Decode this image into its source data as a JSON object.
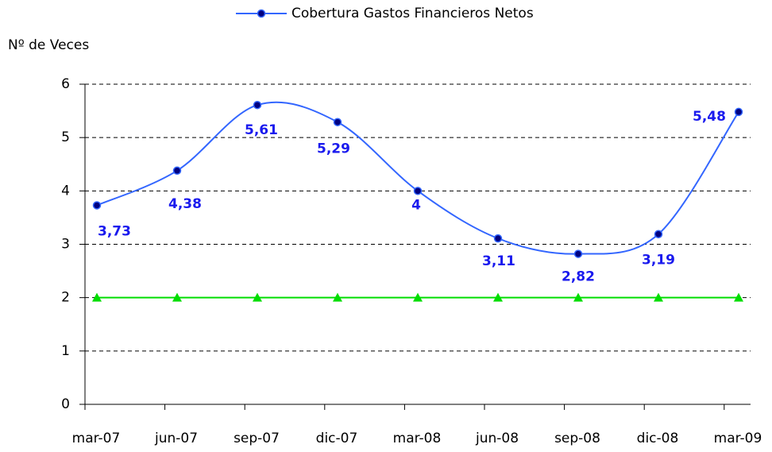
{
  "chart_data": {
    "type": "line",
    "y_label": "Nº de Veces",
    "categories": [
      "mar-07",
      "jun-07",
      "sep-07",
      "dic-07",
      "mar-08",
      "jun-08",
      "sep-08",
      "dic-08",
      "mar-09"
    ],
    "series": [
      {
        "name": "Cobertura Gastos Financieros Netos",
        "color": "#3366ff",
        "marker_color": "#000080",
        "marker": "circle",
        "label_color": "#1a1aee",
        "values": [
          3.73,
          4.38,
          5.61,
          5.29,
          4,
          3.11,
          2.82,
          3.19,
          5.48
        ],
        "value_labels": [
          "3,73",
          "4,38",
          "5,61",
          "5,29",
          "4",
          "3,11",
          "2,82",
          "3,19",
          "5,48"
        ]
      },
      {
        "color": "#00dd00",
        "marker_color": "#00dd00",
        "marker": "triangle",
        "values": [
          2,
          2,
          2,
          2,
          2,
          2,
          2,
          2,
          2
        ]
      }
    ],
    "ylim": [
      0,
      6
    ],
    "yticks": [
      0,
      1,
      2,
      3,
      4,
      5,
      6
    ],
    "grid": true,
    "smooth": true
  }
}
